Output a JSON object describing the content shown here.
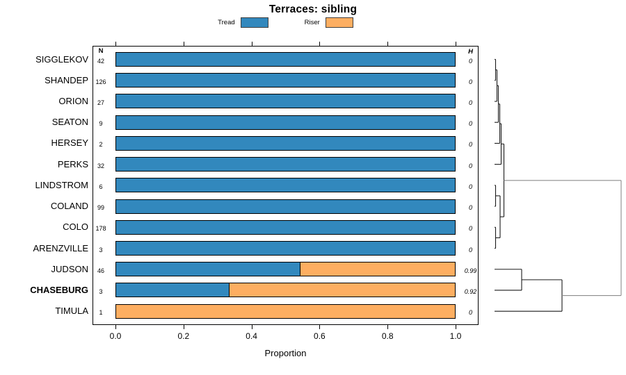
{
  "title": "Terraces: sibling",
  "legend": {
    "items": [
      {
        "label": "Tread",
        "color": "#3288BD"
      },
      {
        "label": "Riser",
        "color": "#FDAE61"
      }
    ]
  },
  "columns": {
    "n_header": "N",
    "h_header": "H"
  },
  "axis": {
    "label": "Proportion",
    "ticks": [
      "0.0",
      "0.2",
      "0.4",
      "0.6",
      "0.8",
      "1.0"
    ]
  },
  "chart_data": {
    "type": "bar",
    "orientation": "horizontal",
    "stacked": true,
    "title": "Terraces: sibling",
    "xlabel": "Proportion",
    "xlim": [
      0,
      1
    ],
    "series_labels": [
      "Tread",
      "Riser"
    ],
    "rows": [
      {
        "label": "SIGGLEKOV",
        "n": 42,
        "tread": 1.0,
        "riser": 0.0,
        "h": "0",
        "bold": false
      },
      {
        "label": "SHANDEP",
        "n": 126,
        "tread": 1.0,
        "riser": 0.0,
        "h": "0",
        "bold": false
      },
      {
        "label": "ORION",
        "n": 27,
        "tread": 1.0,
        "riser": 0.0,
        "h": "0",
        "bold": false
      },
      {
        "label": "SEATON",
        "n": 9,
        "tread": 1.0,
        "riser": 0.0,
        "h": "0",
        "bold": false
      },
      {
        "label": "HERSEY",
        "n": 2,
        "tread": 1.0,
        "riser": 0.0,
        "h": "0",
        "bold": false
      },
      {
        "label": "PERKS",
        "n": 32,
        "tread": 1.0,
        "riser": 0.0,
        "h": "0",
        "bold": false
      },
      {
        "label": "LINDSTROM",
        "n": 6,
        "tread": 1.0,
        "riser": 0.0,
        "h": "0",
        "bold": false
      },
      {
        "label": "COLAND",
        "n": 99,
        "tread": 1.0,
        "riser": 0.0,
        "h": "0",
        "bold": false
      },
      {
        "label": "COLO",
        "n": 178,
        "tread": 1.0,
        "riser": 0.0,
        "h": "0",
        "bold": false
      },
      {
        "label": "ARENZVILLE",
        "n": 3,
        "tread": 1.0,
        "riser": 0.0,
        "h": "0",
        "bold": false
      },
      {
        "label": "JUDSON",
        "n": 46,
        "tread": 0.545,
        "riser": 0.455,
        "h": "0.99",
        "bold": false
      },
      {
        "label": "CHASEBURG",
        "n": 3,
        "tread": 0.335,
        "riser": 0.665,
        "h": "0.92",
        "bold": true
      },
      {
        "label": "TIMULA",
        "n": 1,
        "tread": 0.0,
        "riser": 1.0,
        "h": "0",
        "bold": false
      }
    ]
  },
  "dendrogram": {
    "leaf_x": 711,
    "line_color": "#1a1a1a",
    "root_color": "#8c8c8c",
    "merges": [
      {
        "a": "r0",
        "b": "r1",
        "x": 712.5
      },
      {
        "a": "m0",
        "b": "r2",
        "x": 714.5
      },
      {
        "a": "m1",
        "b": "r3",
        "x": 716.5
      },
      {
        "a": "m2",
        "b": "r4",
        "x": 718.5
      },
      {
        "a": "m3",
        "b": "r5",
        "x": 720.5
      },
      {
        "a": "r6",
        "b": "r7",
        "x": 712.5
      },
      {
        "a": "r8",
        "b": "r9",
        "x": 712.5
      },
      {
        "a": "m5",
        "b": "m6",
        "x": 719
      },
      {
        "a": "m4",
        "b": "m7",
        "x": 724.5
      },
      {
        "a": "r10",
        "b": "r11",
        "x": 750
      },
      {
        "a": "m9",
        "b": "r12",
        "x": 808
      },
      {
        "a": "m8",
        "b": "m10",
        "x": 893,
        "root": true
      }
    ]
  }
}
